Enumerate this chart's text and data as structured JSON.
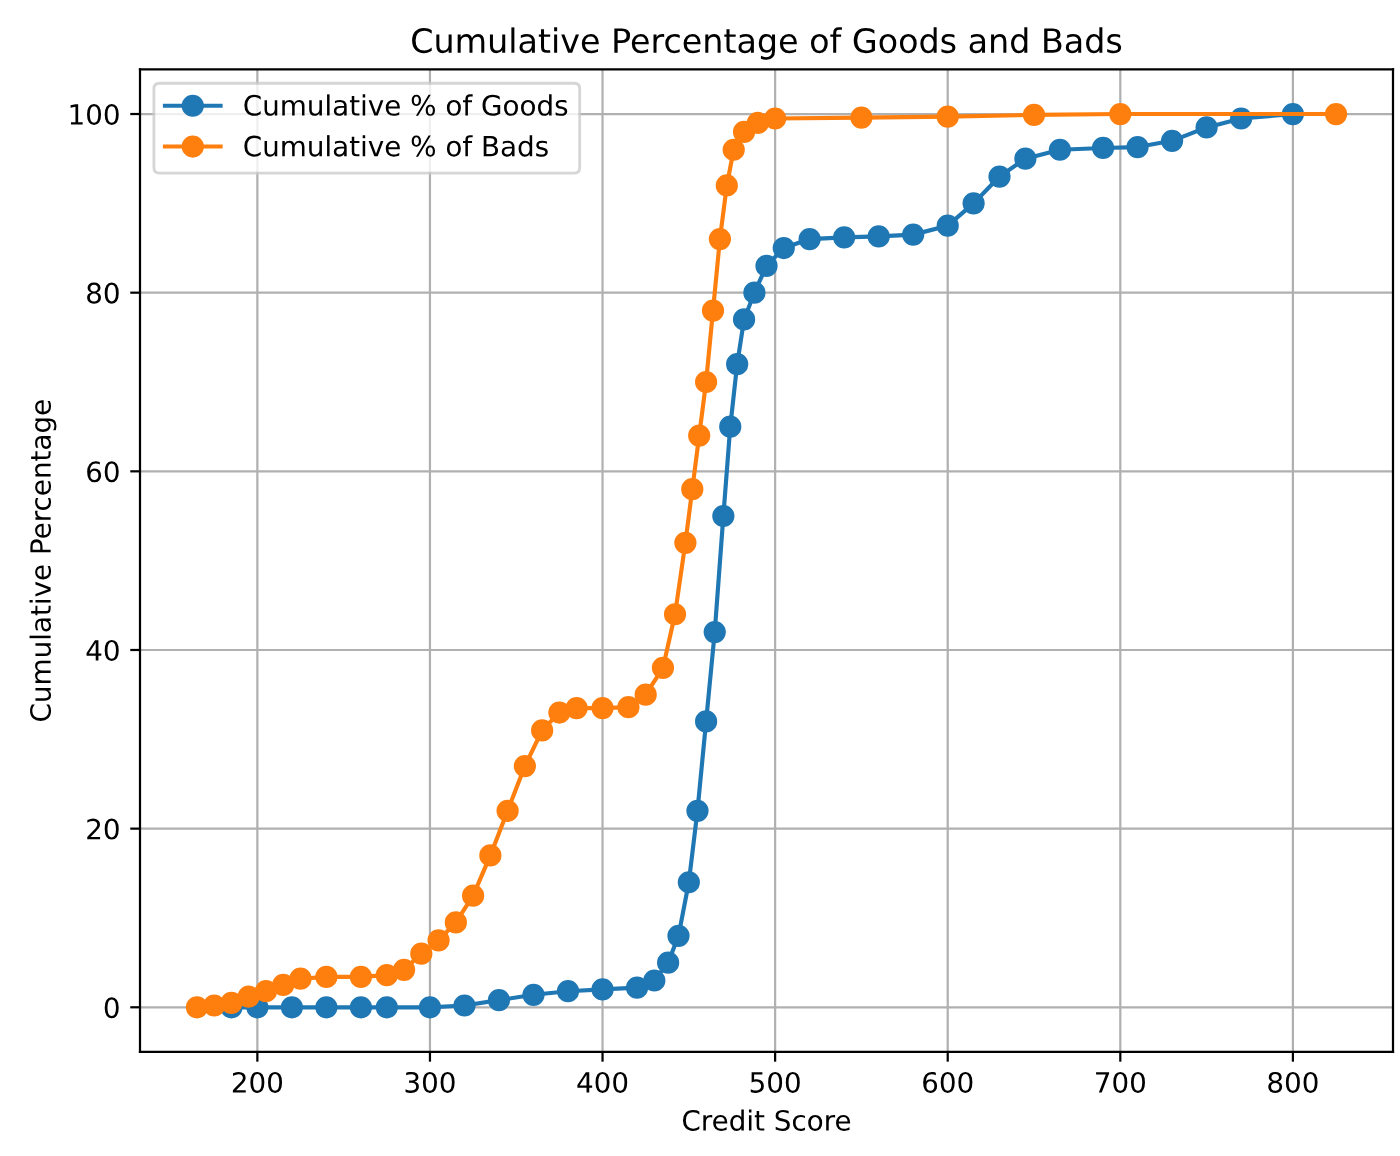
{
  "chart_data": {
    "type": "line",
    "title": "Cumulative Percentage of Goods and Bads",
    "xlabel": "Credit Score",
    "ylabel": "Cumulative Percentage",
    "xlim": [
      132,
      858
    ],
    "xticks": [
      200,
      300,
      400,
      500,
      600,
      700,
      800
    ],
    "ylim": [
      -5,
      105
    ],
    "yticks": [
      0,
      20,
      40,
      60,
      80,
      100
    ],
    "grid": true,
    "legend": "top left",
    "marker": "circle",
    "line_style": "solid",
    "series": [
      {
        "name": "Cumulative % of Goods",
        "color": "#1f77b4",
        "x": [
          185,
          200,
          220,
          240,
          260,
          275,
          300,
          320,
          340,
          360,
          380,
          400,
          420,
          430,
          438,
          444,
          450,
          455,
          460,
          465,
          470,
          474,
          478,
          482,
          488,
          495,
          505,
          520,
          540,
          560,
          580,
          600,
          615,
          630,
          645,
          665,
          690,
          710,
          730,
          750,
          770,
          800
        ],
        "values": [
          0,
          0,
          0,
          0,
          0,
          0,
          0,
          0.2,
          0.8,
          1.4,
          1.8,
          2,
          2.2,
          3,
          5,
          8,
          14,
          22,
          32,
          42,
          55,
          65,
          72,
          77,
          80,
          83,
          85,
          86,
          86.2,
          86.3,
          86.5,
          87.5,
          90,
          93,
          95,
          96,
          96.2,
          96.3,
          97,
          98.5,
          99.5,
          100
        ]
      },
      {
        "name": "Cumulative % of Bads",
        "color": "#ff7f0e",
        "x": [
          165,
          175,
          185,
          195,
          205,
          215,
          225,
          240,
          260,
          275,
          285,
          295,
          305,
          315,
          325,
          335,
          345,
          355,
          365,
          375,
          385,
          400,
          415,
          425,
          435,
          442,
          448,
          452,
          456,
          460,
          464,
          468,
          472,
          476,
          482,
          490,
          500,
          550,
          600,
          650,
          700,
          825
        ],
        "values": [
          0,
          0.2,
          0.5,
          1.2,
          1.8,
          2.5,
          3.2,
          3.4,
          3.4,
          3.6,
          4.2,
          6,
          7.5,
          9.5,
          12.5,
          17,
          22,
          27,
          31,
          33,
          33.5,
          33.5,
          33.6,
          35,
          38,
          44,
          52,
          58,
          64,
          70,
          78,
          86,
          92,
          96,
          98,
          99,
          99.5,
          99.6,
          99.7,
          99.9,
          100,
          100
        ]
      }
    ]
  }
}
